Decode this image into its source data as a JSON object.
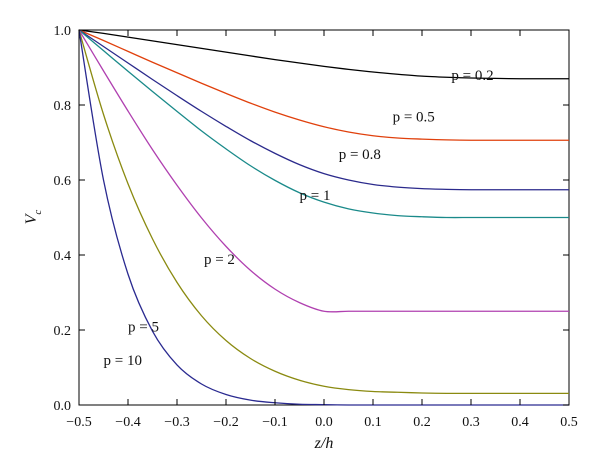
{
  "chart_data": {
    "type": "line",
    "title": "",
    "xlabel": "z/h",
    "ylabel": {
      "main": "V",
      "sub": "c"
    },
    "xlim": [
      -0.5,
      0.5
    ],
    "ylim": [
      0.0,
      1.0
    ],
    "xticks": [
      "-0.5",
      "-0.4",
      "-0.3",
      "-0.2",
      "-0.1",
      "0.0",
      "0.1",
      "0.2",
      "0.3",
      "0.4",
      "0.5"
    ],
    "yticks": [
      "0.0",
      "0.2",
      "0.4",
      "0.6",
      "0.8",
      "1.0"
    ],
    "grid": false,
    "x": [
      -0.5,
      -0.45,
      -0.4,
      -0.35,
      -0.3,
      -0.25,
      -0.2,
      -0.15,
      -0.1,
      -0.05,
      0.0,
      0.05,
      0.1,
      0.15,
      0.2,
      0.25,
      0.3,
      0.35,
      0.4,
      0.45,
      0.5
    ],
    "series": [
      {
        "name": "p = 0.2",
        "color": "#000000",
        "values": [
          1.0,
          0.991,
          0.981,
          0.971,
          0.961,
          0.951,
          0.941,
          0.931,
          0.921,
          0.912,
          0.903,
          0.895,
          0.888,
          0.882,
          0.877,
          0.874,
          0.872,
          0.871,
          0.87,
          0.87,
          0.87
        ]
      },
      {
        "name": "p = 0.5",
        "color": "#e0400c",
        "values": [
          1.0,
          0.972,
          0.943,
          0.914,
          0.886,
          0.858,
          0.831,
          0.805,
          0.781,
          0.76,
          0.742,
          0.728,
          0.718,
          0.712,
          0.709,
          0.707,
          0.706,
          0.706,
          0.706,
          0.706,
          0.706
        ]
      },
      {
        "name": "p = 0.8",
        "color": "#2b2a8c",
        "values": [
          1.0,
          0.956,
          0.912,
          0.868,
          0.825,
          0.783,
          0.743,
          0.705,
          0.671,
          0.641,
          0.617,
          0.6,
          0.588,
          0.581,
          0.577,
          0.575,
          0.574,
          0.574,
          0.574,
          0.574,
          0.574
        ]
      },
      {
        "name": "p = 1",
        "color": "#1a8a8a",
        "values": [
          1.0,
          0.945,
          0.89,
          0.836,
          0.783,
          0.731,
          0.683,
          0.638,
          0.599,
          0.566,
          0.541,
          0.523,
          0.512,
          0.505,
          0.502,
          0.5,
          0.5,
          0.5,
          0.5,
          0.5,
          0.5
        ]
      },
      {
        "name": "p = 2",
        "color": "#b040b0",
        "values": [
          1.0,
          0.891,
          0.784,
          0.681,
          0.586,
          0.499,
          0.423,
          0.359,
          0.309,
          0.273,
          0.25,
          0.25,
          0.25,
          0.25,
          0.25,
          0.25,
          0.25,
          0.25,
          0.25,
          0.25,
          0.25
        ]
      },
      {
        "name": "p = 5",
        "color": "#8a8a10",
        "values": [
          1.0,
          0.775,
          0.59,
          0.443,
          0.327,
          0.238,
          0.172,
          0.124,
          0.09,
          0.066,
          0.05,
          0.041,
          0.036,
          0.034,
          0.032,
          0.031,
          0.031,
          0.031,
          0.031,
          0.031,
          0.031
        ]
      },
      {
        "name": "p = 10",
        "color": "#2a2a90",
        "values": [
          1.0,
          0.6,
          0.349,
          0.197,
          0.107,
          0.056,
          0.028,
          0.013,
          0.006,
          0.002,
          0.001,
          0.0,
          0.0,
          0.0,
          0.0,
          0.0,
          0.0,
          0.0,
          0.0,
          0.0,
          0.0
        ]
      }
    ],
    "annotations": [
      {
        "text": "p = 0.2",
        "x": 0.26,
        "y": 0.88
      },
      {
        "text": "p = 0.5",
        "x": 0.14,
        "y": 0.77
      },
      {
        "text": "p = 0.8",
        "x": 0.03,
        "y": 0.67
      },
      {
        "text": "p = 1",
        "x": -0.05,
        "y": 0.56
      },
      {
        "text": "p = 2",
        "x": -0.245,
        "y": 0.39
      },
      {
        "text": "p = 5",
        "x": -0.4,
        "y": 0.21
      },
      {
        "text": "p = 10",
        "x": -0.45,
        "y": 0.12
      }
    ]
  }
}
